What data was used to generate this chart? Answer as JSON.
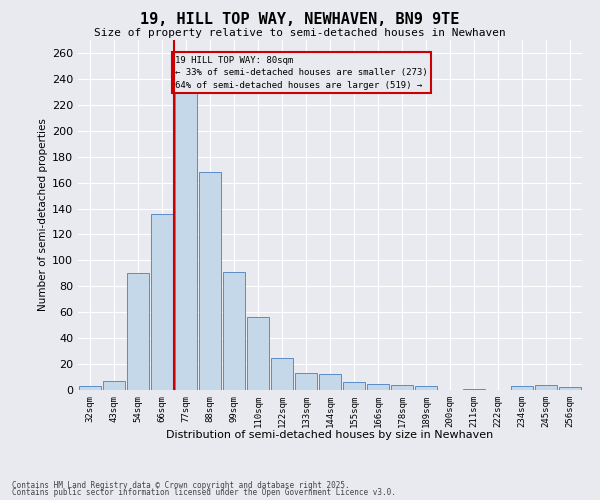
{
  "title": "19, HILL TOP WAY, NEWHAVEN, BN9 9TE",
  "subtitle": "Size of property relative to semi-detached houses in Newhaven",
  "xlabel": "Distribution of semi-detached houses by size in Newhaven",
  "ylabel": "Number of semi-detached properties",
  "categories": [
    "32sqm",
    "43sqm",
    "54sqm",
    "66sqm",
    "77sqm",
    "88sqm",
    "99sqm",
    "110sqm",
    "122sqm",
    "133sqm",
    "144sqm",
    "155sqm",
    "166sqm",
    "178sqm",
    "189sqm",
    "200sqm",
    "211sqm",
    "222sqm",
    "234sqm",
    "245sqm",
    "256sqm"
  ],
  "values": [
    3,
    7,
    90,
    136,
    230,
    168,
    91,
    56,
    25,
    13,
    12,
    6,
    5,
    4,
    3,
    0,
    1,
    0,
    3,
    4,
    2
  ],
  "bar_color": "#c5d8ea",
  "bar_edge_color": "#5b8cc8",
  "vline_index": 4,
  "vline_color": "#cc0000",
  "annotation_title": "19 HILL TOP WAY: 80sqm",
  "annotation_line1": "← 33% of semi-detached houses are smaller (273)",
  "annotation_line2": "64% of semi-detached houses are larger (519) →",
  "background_color": "#e8eaf0",
  "grid_color": "#ffffff",
  "footer_line1": "Contains HM Land Registry data © Crown copyright and database right 2025.",
  "footer_line2": "Contains public sector information licensed under the Open Government Licence v3.0.",
  "ylim": [
    0,
    270
  ],
  "yticks": [
    0,
    20,
    40,
    60,
    80,
    100,
    120,
    140,
    160,
    180,
    200,
    220,
    240,
    260
  ]
}
